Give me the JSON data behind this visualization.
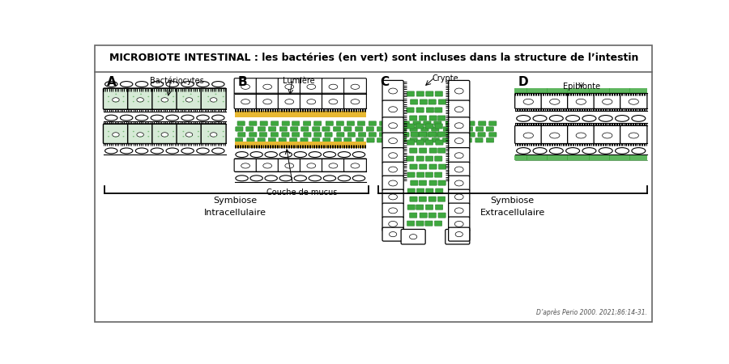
{
  "title": "MICROBIOTE INTESTINAL : les bactéries (en vert) sont incluses dans la structure de l’intestin",
  "panel_A_label": "A",
  "panel_B_label": "B",
  "panel_C_label": "C",
  "panel_D_label": "D",
  "annotation_A": "Bactériocytes",
  "annotation_B1": "Lumière",
  "annotation_B2": "Couche de mucus",
  "annotation_C": "Crypte",
  "annotation_D": "Epibionte",
  "label_bottom_left": "Symbiose\nIntracellulaire",
  "label_bottom_right": "Symbiose\nExtracellulaire",
  "citation": "D’après Perio 2000. 2021;86:14-31.",
  "cell_green_fill": "#d6ead6",
  "cell_green_dots": "#7cbf7c",
  "bacteria_fill": "#3ea83e",
  "bacteria_dark": "#2d7d2d",
  "yellow_fill": "#e8b830",
  "white": "#ffffff",
  "black": "#111111"
}
